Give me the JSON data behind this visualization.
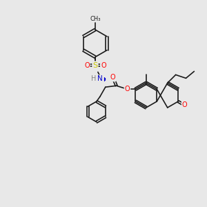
{
  "bg_color": "#e8e8e8",
  "bond_color": "#1a1a1a",
  "atom_colors": {
    "O": "#ff0000",
    "N": "#0000cc",
    "S": "#cccc00",
    "H": "#808080",
    "C": "#1a1a1a"
  },
  "figsize": [
    3.0,
    3.0
  ],
  "dpi": 100,
  "lw": 1.2
}
